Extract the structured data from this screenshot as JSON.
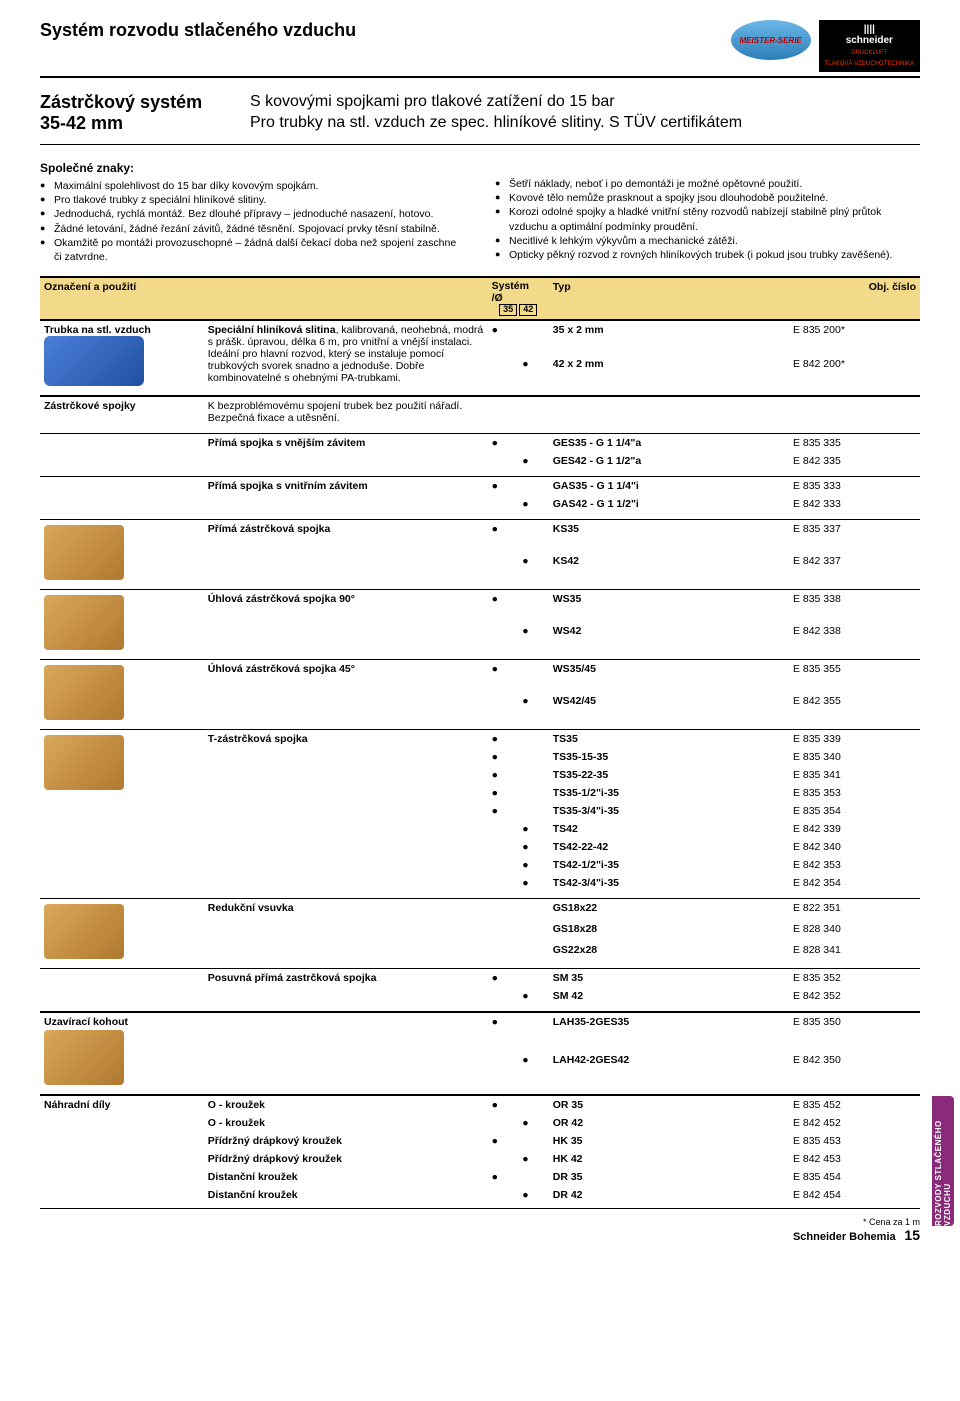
{
  "header": {
    "page_title": "Systém rozvodu stlačeného vzduchu",
    "meister": "MEISTER-SERIE",
    "brand": "schneider",
    "brand_sub1": "DRUCKLUFT",
    "brand_sub2": "TLAKOVÁ VZDUCHOTECHNIKA"
  },
  "subheader": {
    "left1": "Zástrčkový systém",
    "left2": "35-42 mm",
    "right1": "S kovovými spojkami pro tlakové zatížení do 15 bar",
    "right2": "Pro trubky na stl. vzduch ze spec. hliníkové slitiny. S TÜV certifikátem"
  },
  "features": {
    "title": "Společné znaky:",
    "left": [
      "Maximální spolehlivost do 15 bar díky kovovým spojkám.",
      "Pro tlakové trubky z speciální hliníkové slitiny.",
      "Jednoduchá, rychlá montáž. Bez dlouhé přípravy – jednoduché nasazení, hotovo.",
      "Žádné letování, žádné řezání závitů, žádné těsnění. Spojovací prvky těsní stabilně.",
      "Okamžitě po montáži provozuschopné – žádná další čekací doba než spojení zaschne či zatvrdne."
    ],
    "right": [
      "Šetří náklady, neboť i po demontáži je možné opětovné použití.",
      "Kovové tělo nemůže prasknout a spojky jsou dlouhodobě použitelné.",
      "Korozi odolné spojky a hladké vnitřní stěny rozvodů nabízejí stabilně plný průtok vzduchu a optimální podmínky proudění.",
      "Necitlivé k lehkým výkyvům a mechanické zátěži.",
      "Opticky pěkný rozvod z rovných hliníkových trubek (i pokud jsou trubky zavěšené)."
    ]
  },
  "table": {
    "headers": {
      "label": "Označení a použití",
      "sys": "Systém",
      "sys_unit": "/Ø",
      "s35": "35",
      "s42": "42",
      "typ": "Typ",
      "obj": "Obj. číslo"
    },
    "groups": [
      {
        "label": "Trubka na stl. vzduch",
        "desc_bold": "Speciální hliníková slitina",
        "desc_rest": ", kalibrovaná, neohebná, modrá s prášk. úpravou, délka 6 m, pro vnitřní a vnější instalaci.\nIdeální pro hlavní rozvod, který se instaluje pomocí trubkových svorek snadno a jednoduše. Dobře kombinovatelné s ohebnými PA-trubkami.",
        "img": "pipe",
        "rows": [
          {
            "s35": "●",
            "s42": "",
            "typ": "35 x 2 mm",
            "obj": "E 835 200*"
          },
          {
            "s35": "",
            "s42": "●",
            "typ": "42 x 2 mm",
            "obj": "E 842 200*"
          }
        ]
      },
      {
        "label": "Zástrčkové spojky",
        "desc": "K bezproblémovému spojení trubek bez použití nářadí.\nBezpečná fixace a utěsnění.",
        "rows": []
      },
      {
        "sub": "Přímá spojka s vnějším závitem",
        "rows": [
          {
            "s35": "●",
            "s42": "",
            "typ": "GES35 - G 1 1/4\"a",
            "obj": "E 835 335"
          },
          {
            "s35": "",
            "s42": "●",
            "typ": "GES42 - G 1 1/2\"a",
            "obj": "E 842 335"
          }
        ]
      },
      {
        "sub": "Přímá spojka s vnitřním závitem",
        "rows": [
          {
            "s35": "●",
            "s42": "",
            "typ": "GAS35 - G 1 1/4\"i",
            "obj": "E 835 333"
          },
          {
            "s35": "",
            "s42": "●",
            "typ": "GAS42 - G 1 1/2\"i",
            "obj": "E 842 333"
          }
        ]
      },
      {
        "sub": "Přímá zástrčková spojka",
        "img": true,
        "rows": [
          {
            "s35": "●",
            "s42": "",
            "typ": "KS35",
            "obj": "E 835 337"
          },
          {
            "s35": "",
            "s42": "●",
            "typ": "KS42",
            "obj": "E 842 337"
          }
        ]
      },
      {
        "sub": "Úhlová zástrčková spojka 90°",
        "img": true,
        "rows": [
          {
            "s35": "●",
            "s42": "",
            "typ": "WS35",
            "obj": "E 835 338"
          },
          {
            "s35": "",
            "s42": "●",
            "typ": "WS42",
            "obj": "E 842 338"
          }
        ]
      },
      {
        "sub": "Úhlová zástrčková spojka 45°",
        "img": true,
        "rows": [
          {
            "s35": "●",
            "s42": "",
            "typ": "WS35/45",
            "obj": "E 835 355"
          },
          {
            "s35": "",
            "s42": "●",
            "typ": "WS42/45",
            "obj": "E 842 355"
          }
        ]
      },
      {
        "sub": "T-zástrčková spojka",
        "img": true,
        "rows": [
          {
            "s35": "●",
            "s42": "",
            "typ": "TS35",
            "obj": "E 835 339"
          },
          {
            "s35": "●",
            "s42": "",
            "typ": "TS35-15-35",
            "obj": "E 835 340"
          },
          {
            "s35": "●",
            "s42": "",
            "typ": "TS35-22-35",
            "obj": "E 835 341"
          },
          {
            "s35": "●",
            "s42": "",
            "typ": "TS35-1/2\"i-35",
            "obj": "E 835 353"
          },
          {
            "s35": "●",
            "s42": "",
            "typ": "TS35-3/4\"i-35",
            "obj": "E 835 354"
          },
          {
            "s35": "",
            "s42": "●",
            "typ": "TS42",
            "obj": "E 842 339"
          },
          {
            "s35": "",
            "s42": "●",
            "typ": "TS42-22-42",
            "obj": "E 842 340"
          },
          {
            "s35": "",
            "s42": "●",
            "typ": "TS42-1/2\"i-35",
            "obj": "E 842 353"
          },
          {
            "s35": "",
            "s42": "●",
            "typ": "TS42-3/4\"i-35",
            "obj": "E 842 354"
          }
        ]
      },
      {
        "sub": "Redukční vsuvka",
        "img": true,
        "rows": [
          {
            "s35": "",
            "s42": "",
            "typ": "GS18x22",
            "obj": "E 822 351"
          },
          {
            "s35": "",
            "s42": "",
            "typ": "GS18x28",
            "obj": "E 828 340"
          },
          {
            "s35": "",
            "s42": "",
            "typ": "GS22x28",
            "obj": "E 828 341"
          }
        ]
      },
      {
        "sub": "Posuvná přímá zastrčková spojka",
        "rows": [
          {
            "s35": "●",
            "s42": "",
            "typ": "SM 35",
            "obj": "E 835 352"
          },
          {
            "s35": "",
            "s42": "●",
            "typ": "SM 42",
            "obj": "E 842 352"
          }
        ]
      },
      {
        "label": "Uzavírací kohout",
        "img": true,
        "rows": [
          {
            "s35": "●",
            "s42": "",
            "typ": "LAH35-2GES35",
            "obj": "E 835 350"
          },
          {
            "s35": "",
            "s42": "●",
            "typ": "LAH42-2GES42",
            "obj": "E 842 350"
          }
        ]
      },
      {
        "label": "Náhradní díly",
        "subs": [
          {
            "name": "O - kroužek",
            "s35": "●",
            "s42": "",
            "typ": "OR 35",
            "obj": "E 835 452"
          },
          {
            "name": "O - kroužek",
            "s35": "",
            "s42": "●",
            "typ": "OR 42",
            "obj": "E 842 452"
          },
          {
            "name": "Přídržný drápkový kroužek",
            "s35": "●",
            "s42": "",
            "typ": "HK 35",
            "obj": "E 835 453"
          },
          {
            "name": "Přídržný drápkový kroužek",
            "s35": "",
            "s42": "●",
            "typ": "HK 42",
            "obj": "E 842 453"
          },
          {
            "name": "Distanční kroužek",
            "s35": "●",
            "s42": "",
            "typ": "DR 35",
            "obj": "E 835 454"
          },
          {
            "name": "Distanční kroužek",
            "s35": "",
            "s42": "●",
            "typ": "DR 42",
            "obj": "E 842 454"
          }
        ]
      }
    ]
  },
  "side_tab": "ROZVODY STLAČENÉHO VZDUCHU",
  "footer": {
    "note": "* Cena za 1 m",
    "brand": "Schneider Bohemia",
    "page": "15"
  },
  "colors": {
    "header_band": "#f3d98a",
    "side_tab": "#8a2a7a"
  }
}
